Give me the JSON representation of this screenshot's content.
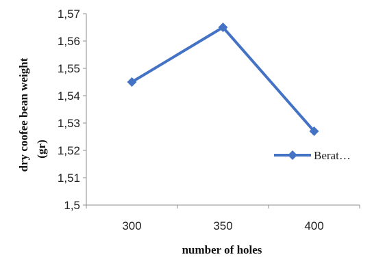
{
  "chart_data": {
    "type": "line",
    "title": "",
    "xlabel": "number  of holes",
    "ylabel_lines": [
      "dry coofee bean weight",
      "(gr)"
    ],
    "categories": [
      "300",
      "350",
      "400"
    ],
    "series": [
      {
        "name": "Berat…",
        "values": [
          1.545,
          1.565,
          1.527
        ]
      }
    ],
    "ylim": [
      1.5,
      1.57
    ],
    "yticks": [
      "1,5",
      "1,51",
      "1,52",
      "1,53",
      "1,54",
      "1,55",
      "1,56",
      "1,57"
    ],
    "grid": false,
    "legend_position": "right",
    "series_color": "#4472C4",
    "marker": "diamond"
  }
}
